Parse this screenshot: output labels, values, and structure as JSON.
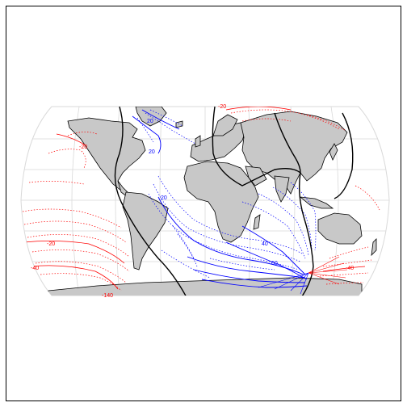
{
  "map": {
    "projection": "robinson",
    "land_fill": "#c8c8c8",
    "land_stroke": "#000000",
    "graticule_color": "#d9d9d9",
    "frame_color": "#000000",
    "positive_color": "#0000ff",
    "negative_color": "#ff0000",
    "zero_line_color": "#000000",
    "contour_labels": [
      {
        "text": "20",
        "color": "#0000ff"
      },
      {
        "text": "20",
        "color": "#0000ff"
      },
      {
        "text": "20",
        "color": "#0000ff"
      },
      {
        "text": "40",
        "color": "#0000ff"
      },
      {
        "text": "60",
        "color": "#0000ff"
      },
      {
        "text": "-20",
        "color": "#ff0000"
      },
      {
        "text": "-20",
        "color": "#ff0000"
      },
      {
        "text": "-40",
        "color": "#ff0000"
      },
      {
        "text": "-140",
        "color": "#ff0000"
      },
      {
        "text": "-20",
        "color": "#ff0000"
      },
      {
        "text": "-40",
        "color": "#ff0000"
      }
    ]
  }
}
